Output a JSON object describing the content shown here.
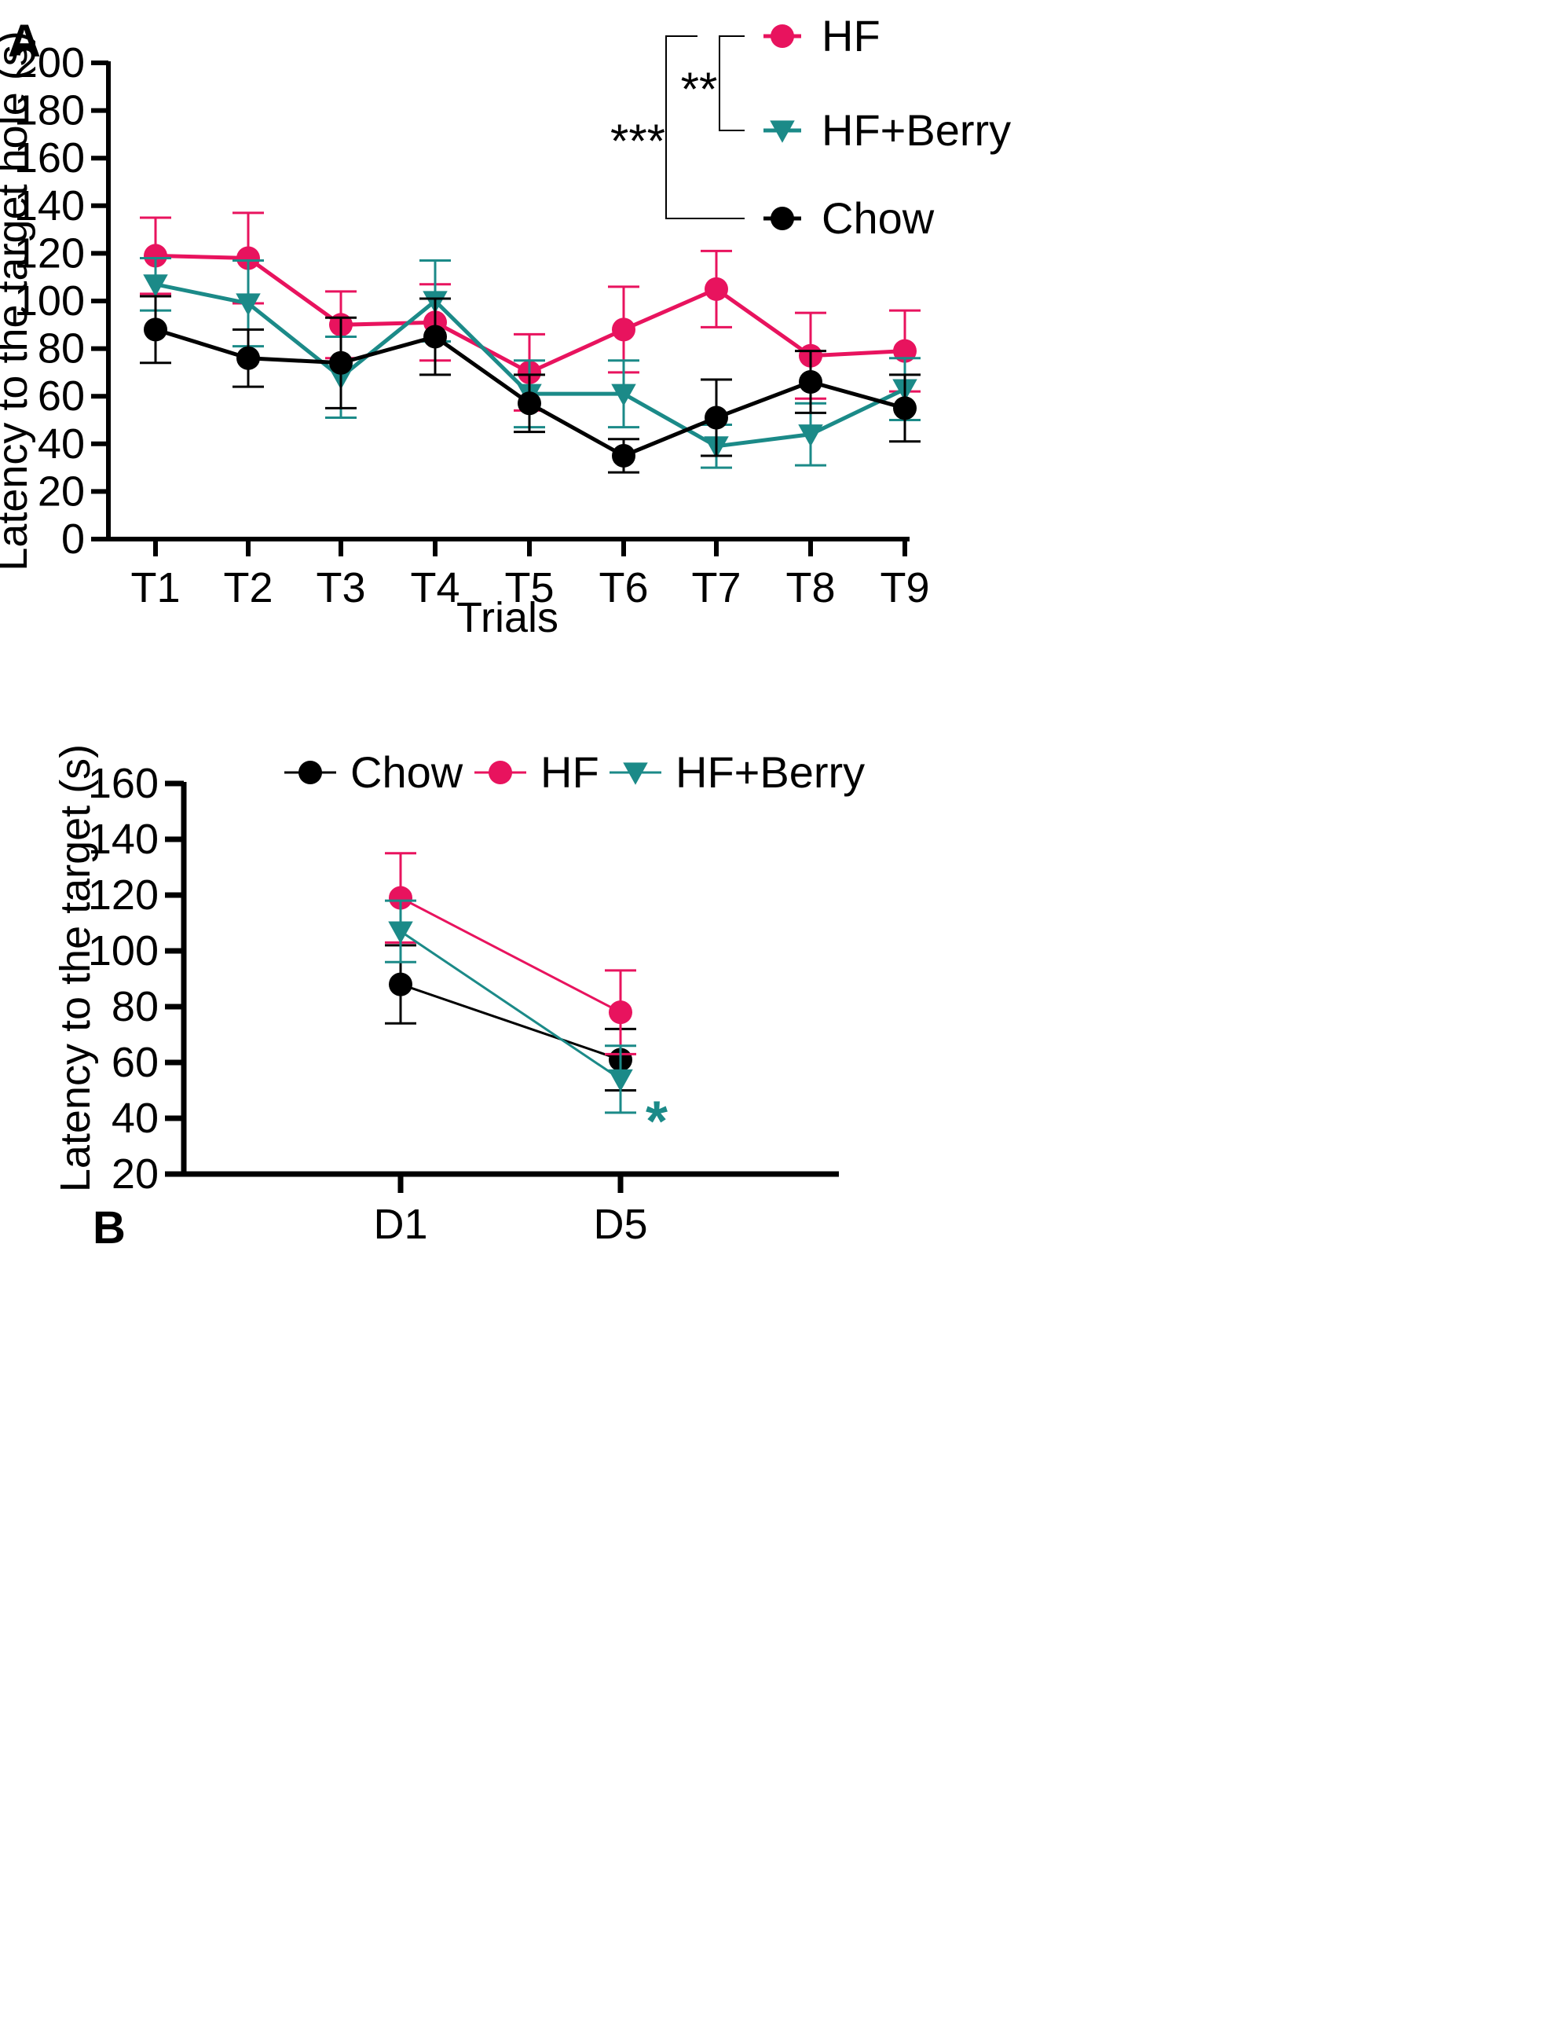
{
  "colors": {
    "HF": "#e8135e",
    "HF+Berry": "#1b8a88",
    "Chow": "#000000",
    "axis": "#000000"
  },
  "chart_data": [
    {
      "panel": "A",
      "type": "line",
      "xlabel": "Trials",
      "ylabel": "Latency to the target hole (s)",
      "categories": [
        "T1",
        "T2",
        "T3",
        "T4",
        "T5",
        "T6",
        "T7",
        "T8",
        "T9"
      ],
      "ylim": [
        0,
        200
      ],
      "yticks": [
        0,
        20,
        40,
        60,
        80,
        100,
        120,
        140,
        160,
        180,
        200
      ],
      "series": [
        {
          "name": "HF",
          "marker": "circle",
          "values": [
            119,
            118,
            90,
            91,
            70,
            88,
            105,
            77,
            79
          ],
          "errors": [
            16,
            19,
            14,
            16,
            16,
            18,
            16,
            18,
            17
          ]
        },
        {
          "name": "HF+Berry",
          "marker": "triangle-down",
          "values": [
            107,
            99,
            68,
            100,
            61,
            61,
            39,
            44,
            63
          ],
          "errors": [
            11,
            18,
            17,
            17,
            14,
            14,
            9,
            13,
            13
          ]
        },
        {
          "name": "Chow",
          "marker": "circle",
          "values": [
            88,
            76,
            74,
            85,
            57,
            35,
            51,
            66,
            55
          ],
          "errors": [
            14,
            12,
            19,
            16,
            12,
            7,
            16,
            13,
            14
          ]
        }
      ],
      "legend_order": [
        "HF",
        "HF+Berry",
        "Chow"
      ],
      "annotations": [
        {
          "text": "**",
          "between": [
            "HF",
            "HF+Berry"
          ]
        },
        {
          "text": "***",
          "between": [
            "HF",
            "Chow"
          ]
        }
      ]
    },
    {
      "panel": "B",
      "type": "line",
      "xlabel": "",
      "ylabel": "Latency to the target (s)",
      "categories": [
        "D1",
        "D5"
      ],
      "ylim": [
        20,
        160
      ],
      "yticks": [
        20,
        40,
        60,
        80,
        100,
        120,
        140,
        160
      ],
      "series": [
        {
          "name": "Chow",
          "marker": "circle",
          "values": [
            88,
            61
          ],
          "errors": [
            14,
            11
          ]
        },
        {
          "name": "HF",
          "marker": "circle",
          "values": [
            119,
            78
          ],
          "errors": [
            16,
            15
          ]
        },
        {
          "name": "HF+Berry",
          "marker": "triangle-down",
          "values": [
            107,
            54
          ],
          "errors": [
            11,
            12
          ]
        }
      ],
      "legend_order": [
        "Chow",
        "HF",
        "HF+Berry"
      ],
      "annotations": [
        {
          "text": "*",
          "series": "HF+Berry",
          "category": "D5"
        }
      ]
    }
  ]
}
